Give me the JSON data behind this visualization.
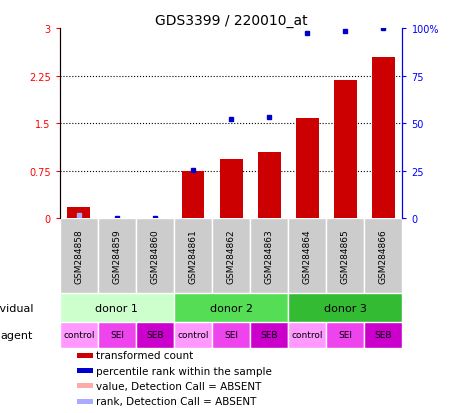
{
  "title": "GDS3399 / 220010_at",
  "samples": [
    "GSM284858",
    "GSM284859",
    "GSM284860",
    "GSM284861",
    "GSM284862",
    "GSM284863",
    "GSM284864",
    "GSM284865",
    "GSM284866"
  ],
  "red_values": [
    0.18,
    0.0,
    0.0,
    0.75,
    0.93,
    1.05,
    1.58,
    2.18,
    2.55
  ],
  "blue_values": [
    0.05,
    0.0,
    0.0,
    0.76,
    1.57,
    1.6,
    2.92,
    2.96,
    3.0
  ],
  "red_absent": [
    false,
    true,
    true,
    false,
    false,
    false,
    false,
    false,
    false
  ],
  "blue_absent": [
    true,
    false,
    false,
    false,
    false,
    false,
    false,
    false,
    false
  ],
  "ylim_left": [
    0,
    3
  ],
  "yticks_left": [
    0,
    0.75,
    1.5,
    2.25,
    3
  ],
  "ytick_labels_left": [
    "0",
    "0.75",
    "1.5",
    "2.25",
    "3"
  ],
  "ytick_labels_right": [
    "0",
    "25",
    "50",
    "75",
    "100%"
  ],
  "donors": [
    {
      "label": "donor 1",
      "start": 0,
      "end": 3,
      "color": "#ccffcc"
    },
    {
      "label": "donor 2",
      "start": 3,
      "end": 6,
      "color": "#44dd44"
    },
    {
      "label": "donor 3",
      "start": 6,
      "end": 9,
      "color": "#22bb22"
    }
  ],
  "agents": [
    "control",
    "SEI",
    "SEB",
    "control",
    "SEI",
    "SEB",
    "control",
    "SEI",
    "SEB"
  ],
  "agent_colors": [
    "#ff99ff",
    "#ee44ee",
    "#cc00cc",
    "#ff99ff",
    "#ee44ee",
    "#cc00cc",
    "#ff99ff",
    "#ee44ee",
    "#cc00cc"
  ],
  "bar_color_present": "#cc0000",
  "bar_color_absent": "#ffaaaa",
  "dot_color_present": "#0000cc",
  "dot_color_absent": "#aaaaff",
  "bar_width": 0.6,
  "sample_box_color": "#cccccc",
  "legend_items": [
    {
      "label": "transformed count",
      "color": "#cc0000"
    },
    {
      "label": "percentile rank within the sample",
      "color": "#0000cc"
    },
    {
      "label": "value, Detection Call = ABSENT",
      "color": "#ffaaaa"
    },
    {
      "label": "rank, Detection Call = ABSENT",
      "color": "#aaaaff"
    }
  ]
}
